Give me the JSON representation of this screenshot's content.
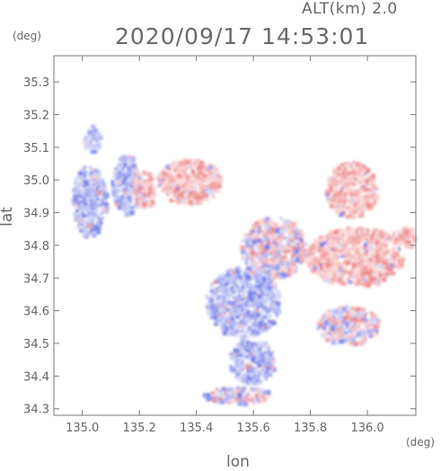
{
  "header": {
    "altitude_label": "ALT(km) 2.0",
    "timestamp": "2020/09/17 14:53:01"
  },
  "chart_data": {
    "type": "heatmap",
    "title": "2020/09/17 14:53:01",
    "subtitle": "ALT(km) 2.0",
    "xlabel": "lon",
    "ylabel": "lat",
    "x_unit": "(deg)",
    "y_unit": "(deg)",
    "xlim": [
      134.9,
      136.17
    ],
    "ylim": [
      34.28,
      35.38
    ],
    "x_ticks": [
      {
        "value": 135.0,
        "label": "135.0"
      },
      {
        "value": 135.2,
        "label": "135.2"
      },
      {
        "value": 135.4,
        "label": "135.4"
      },
      {
        "value": 135.6,
        "label": "135.6"
      },
      {
        "value": 135.8,
        "label": "135.8"
      },
      {
        "value": 136.0,
        "label": "136.0"
      }
    ],
    "y_ticks": [
      {
        "value": 34.3,
        "label": "34.3"
      },
      {
        "value": 34.4,
        "label": "34.4"
      },
      {
        "value": 34.5,
        "label": "34.5"
      },
      {
        "value": 34.6,
        "label": "34.6"
      },
      {
        "value": 34.7,
        "label": "34.7"
      },
      {
        "value": 34.8,
        "label": "34.8"
      },
      {
        "value": 34.9,
        "label": "34.9"
      },
      {
        "value": 35.0,
        "label": "35.0"
      },
      {
        "value": 35.1,
        "label": "35.1"
      },
      {
        "value": 35.2,
        "label": "35.2"
      },
      {
        "value": 35.3,
        "label": "35.3"
      }
    ],
    "grid": false,
    "colors": {
      "approaching": "#7b86e8",
      "receding": "#f08c8c",
      "axis": "#777777"
    },
    "regions": [
      {
        "sign": "negative",
        "lon": [
          134.96,
          135.08
        ],
        "lat": [
          34.83,
          35.05
        ]
      },
      {
        "sign": "negative",
        "lon": [
          135.1,
          135.2
        ],
        "lat": [
          34.9,
          35.08
        ]
      },
      {
        "sign": "negative",
        "lon": [
          135.0,
          135.06
        ],
        "lat": [
          35.09,
          35.17
        ]
      },
      {
        "sign": "positive",
        "lon": [
          135.26,
          135.48
        ],
        "lat": [
          34.93,
          35.07
        ]
      },
      {
        "sign": "positive",
        "lon": [
          135.17,
          135.25
        ],
        "lat": [
          34.92,
          35.03
        ]
      },
      {
        "sign": "mixed",
        "lon": [
          135.55,
          135.78
        ],
        "lat": [
          34.7,
          34.89
        ]
      },
      {
        "sign": "negative",
        "lon": [
          135.43,
          135.69
        ],
        "lat": [
          34.52,
          34.74
        ]
      },
      {
        "sign": "negative",
        "lon": [
          135.51,
          135.67
        ],
        "lat": [
          34.38,
          34.52
        ]
      },
      {
        "sign": "mixed",
        "lon": [
          135.42,
          135.66
        ],
        "lat": [
          34.32,
          34.37
        ]
      },
      {
        "sign": "positive",
        "lon": [
          135.85,
          136.03
        ],
        "lat": [
          34.89,
          35.06
        ]
      },
      {
        "sign": "positive",
        "lon": [
          135.78,
          136.12
        ],
        "lat": [
          34.68,
          34.86
        ]
      },
      {
        "sign": "positive",
        "lon": [
          136.08,
          136.17
        ],
        "lat": [
          34.8,
          34.86
        ]
      },
      {
        "sign": "mixed",
        "lon": [
          135.82,
          136.04
        ],
        "lat": [
          34.5,
          34.62
        ]
      }
    ]
  }
}
